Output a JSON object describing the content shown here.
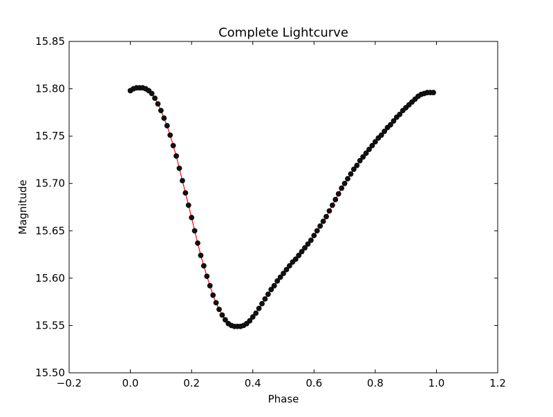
{
  "chart_data": {
    "type": "scatter",
    "title": "Complete Lightcurve",
    "xlabel": "Phase",
    "ylabel": "Magnitude",
    "xlim": [
      -0.2,
      1.2
    ],
    "ylim": [
      15.5,
      15.85
    ],
    "xticks": [
      "−0.2",
      "0.0",
      "0.2",
      "0.4",
      "0.6",
      "0.8",
      "1.0",
      "1.2"
    ],
    "yticks": [
      "15.50",
      "15.55",
      "15.60",
      "15.65",
      "15.70",
      "15.75",
      "15.80",
      "15.85"
    ],
    "grid": false,
    "legend": "none",
    "colors": {
      "points": "#111111",
      "fit_line": "#ff0000",
      "axes": "#000000"
    },
    "series": [
      {
        "marker": "circle",
        "x": [
          0.0,
          0.01,
          0.02,
          0.03,
          0.04,
          0.05,
          0.06,
          0.07,
          0.08,
          0.09,
          0.1,
          0.11,
          0.12,
          0.13,
          0.14,
          0.15,
          0.16,
          0.17,
          0.18,
          0.19,
          0.2,
          0.21,
          0.22,
          0.23,
          0.24,
          0.25,
          0.26,
          0.27,
          0.28,
          0.29,
          0.3,
          0.31,
          0.32,
          0.33,
          0.34,
          0.35,
          0.36,
          0.37,
          0.38,
          0.39,
          0.4,
          0.41,
          0.42,
          0.43,
          0.44,
          0.45,
          0.46,
          0.47,
          0.48,
          0.49,
          0.5,
          0.51,
          0.52,
          0.53,
          0.54,
          0.55,
          0.56,
          0.57,
          0.58,
          0.59,
          0.6,
          0.61,
          0.62,
          0.63,
          0.64,
          0.65,
          0.66,
          0.67,
          0.68,
          0.69,
          0.7,
          0.71,
          0.72,
          0.73,
          0.74,
          0.75,
          0.76,
          0.77,
          0.78,
          0.79,
          0.8,
          0.81,
          0.82,
          0.83,
          0.84,
          0.85,
          0.86,
          0.87,
          0.88,
          0.89,
          0.9,
          0.91,
          0.92,
          0.93,
          0.94,
          0.95,
          0.96,
          0.97,
          0.98,
          0.99
        ],
        "y": [
          15.798,
          15.8,
          15.801,
          15.801,
          15.801,
          15.8,
          15.798,
          15.795,
          15.79,
          15.784,
          15.777,
          15.769,
          15.761,
          15.751,
          15.74,
          15.729,
          15.716,
          15.703,
          15.69,
          15.677,
          15.664,
          15.65,
          15.637,
          15.624,
          15.613,
          15.602,
          15.592,
          15.582,
          15.574,
          15.567,
          15.561,
          15.556,
          15.552,
          15.55,
          15.549,
          15.549,
          15.549,
          15.55,
          15.552,
          15.555,
          15.559,
          15.563,
          15.568,
          15.573,
          15.578,
          15.583,
          15.588,
          15.592,
          15.597,
          15.601,
          15.605,
          15.609,
          15.613,
          15.617,
          15.62,
          15.624,
          15.628,
          15.632,
          15.636,
          15.64,
          15.645,
          15.65,
          15.655,
          15.66,
          15.665,
          15.671,
          15.677,
          15.683,
          15.689,
          15.695,
          15.7,
          15.705,
          15.71,
          15.715,
          15.719,
          15.724,
          15.728,
          15.732,
          15.736,
          15.74,
          15.744,
          15.748,
          15.751,
          15.755,
          15.759,
          15.762,
          15.766,
          15.77,
          15.773,
          15.777,
          15.78,
          15.783,
          15.786,
          15.789,
          15.792,
          15.794,
          15.795,
          15.796,
          15.796,
          15.796
        ]
      }
    ]
  }
}
